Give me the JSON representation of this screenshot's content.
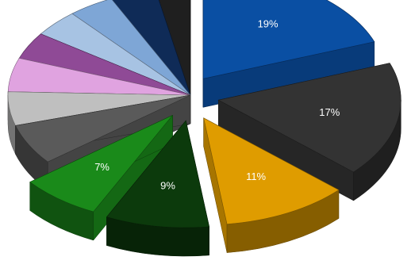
{
  "chart_data": {
    "type": "pie",
    "style": "3d-exploded",
    "legend": "none",
    "slices": [
      {
        "value": 19,
        "label": "19%",
        "color": "#0a4fa3"
      },
      {
        "value": 17,
        "label": "17%",
        "color": "#333333"
      },
      {
        "value": 11,
        "label": "11%",
        "color": "#df9c00"
      },
      {
        "value": 9,
        "label": "9%",
        "color": "#0c3a0c"
      },
      {
        "value": 7,
        "label": "7%",
        "color": "#1a8a1a"
      },
      {
        "value": 6,
        "label": "",
        "color": "#5a5a5a"
      },
      {
        "value": 5,
        "label": "",
        "color": "#bfbfbf"
      },
      {
        "value": 5,
        "label": "",
        "color": "#e0a3e0"
      },
      {
        "value": 4,
        "label": "",
        "color": "#8f4a96"
      },
      {
        "value": 4,
        "label": "",
        "color": "#a7c3e3"
      },
      {
        "value": 4,
        "label": "",
        "color": "#7ea6d6"
      },
      {
        "value": 4,
        "label": "",
        "color": "#0f2b57"
      },
      {
        "value": 3,
        "label": "",
        "color": "#1f1f1f"
      }
    ]
  }
}
